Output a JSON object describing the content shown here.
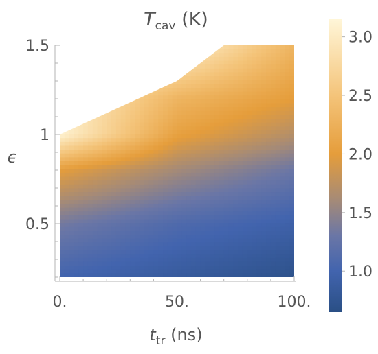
{
  "chart_data": {
    "type": "heatmap",
    "title": {
      "main": "T",
      "sub": "cav",
      "tail": " (K)"
    },
    "xlabel": {
      "main": "t",
      "sub": "tr",
      "tail": " (ns)"
    },
    "ylabel": "ϵ",
    "xlim": [
      0,
      100
    ],
    "ylim": [
      0.2,
      1.5
    ],
    "x_ticks": [
      {
        "value": 0,
        "label": "0."
      },
      {
        "value": 50,
        "label": "50."
      },
      {
        "value": 100,
        "label": "100."
      }
    ],
    "y_ticks": [
      {
        "value": 0.5,
        "label": "0.5"
      },
      {
        "value": 1,
        "label": "1"
      },
      {
        "value": 1.5,
        "label": "1.5"
      }
    ],
    "x_minor_step": 10,
    "y_minor_step": 0.1,
    "region_upper_boundary": [
      {
        "x": 0,
        "y": 1.0
      },
      {
        "x": 30,
        "y": 1.18
      },
      {
        "x": 50,
        "y": 1.3
      },
      {
        "x": 70,
        "y": 1.5
      },
      {
        "x": 100,
        "y": 1.5
      }
    ],
    "value_grid": {
      "x": [
        0,
        50,
        100
      ],
      "y": [
        0.2,
        0.5,
        0.8,
        1.0,
        1.2,
        1.5
      ],
      "z": [
        [
          1.0,
          0.85,
          0.7
        ],
        [
          1.35,
          1.1,
          0.95
        ],
        [
          2.0,
          1.6,
          1.3
        ],
        [
          3.1,
          2.05,
          1.7
        ],
        [
          3.1,
          2.3,
          2.0
        ],
        [
          3.1,
          3.1,
          2.3
        ]
      ]
    },
    "colorbar": {
      "min": 0.65,
      "max": 3.15,
      "ticks": [
        {
          "value": 1.0,
          "label": "1.0"
        },
        {
          "value": 1.5,
          "label": "1.5"
        },
        {
          "value": 2.0,
          "label": "2.0"
        },
        {
          "value": 2.5,
          "label": "2.5"
        },
        {
          "value": 3.0,
          "label": "3.0"
        }
      ],
      "colormap": [
        {
          "value": 0.65,
          "color": "#2a4f85"
        },
        {
          "value": 1.0,
          "color": "#4264ae"
        },
        {
          "value": 1.3,
          "color": "#6a76a6"
        },
        {
          "value": 1.6,
          "color": "#a48a78"
        },
        {
          "value": 2.0,
          "color": "#e59d3b"
        },
        {
          "value": 2.5,
          "color": "#f4c47a"
        },
        {
          "value": 3.15,
          "color": "#fff6d8"
        }
      ]
    }
  }
}
